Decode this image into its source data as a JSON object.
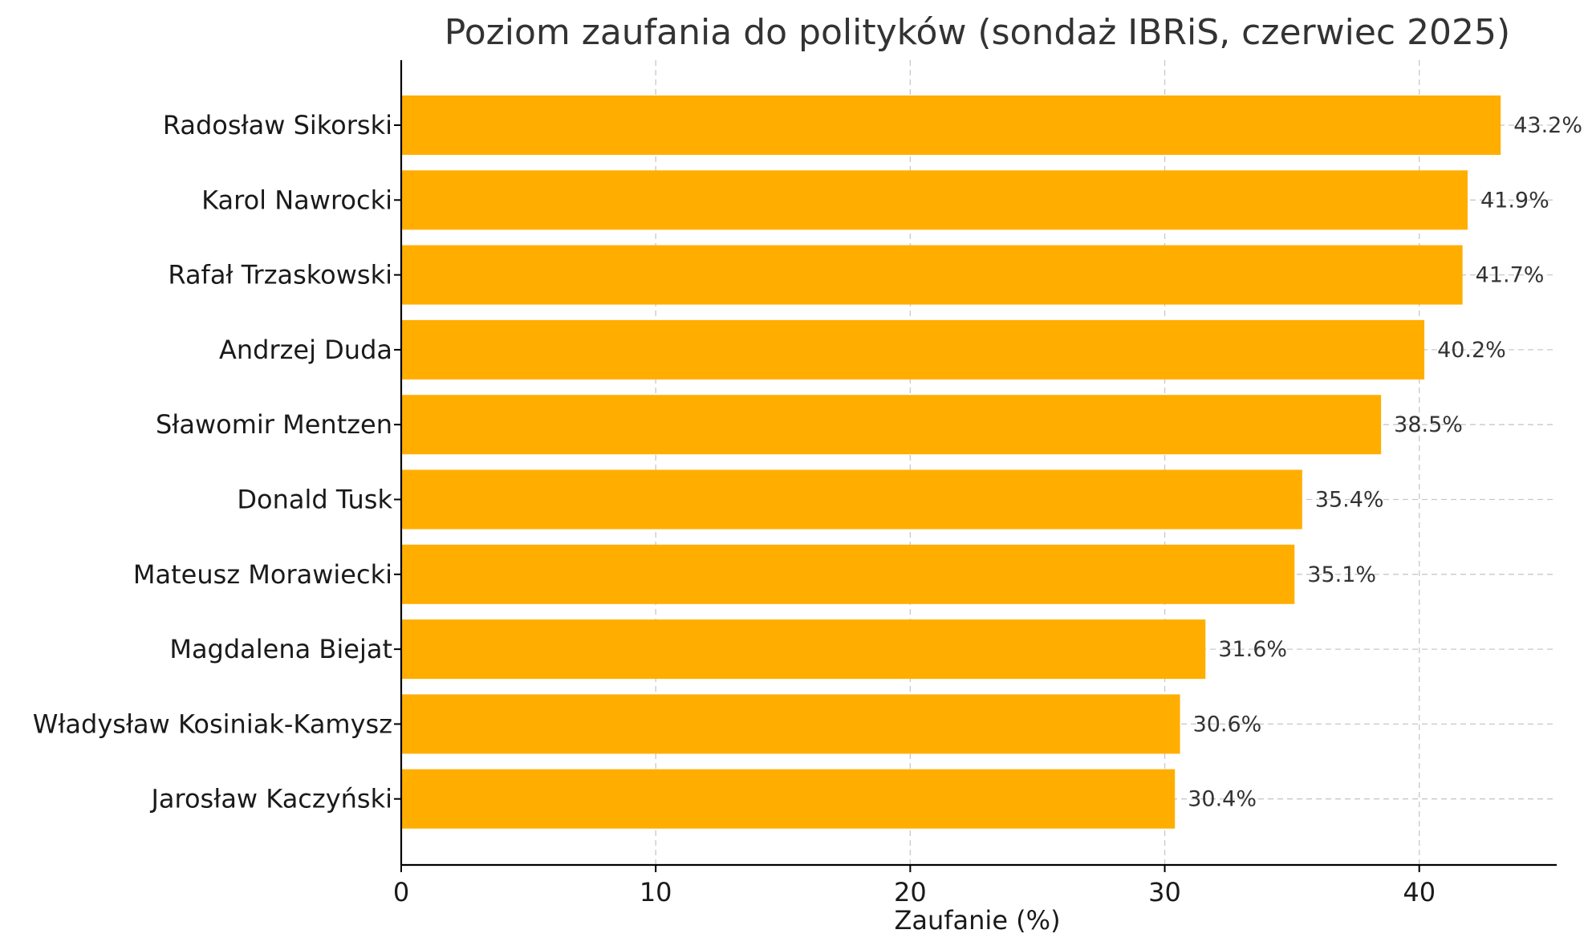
{
  "chart_data": {
    "type": "bar",
    "orientation": "horizontal",
    "title": "Poziom zaufania do polityków (sondaż IBRiS, czerwiec 2025)",
    "xlabel": "Zaufanie (%)",
    "ylabel": "",
    "xlim": [
      0,
      45.4
    ],
    "xticks": [
      "0",
      "10",
      "20",
      "30",
      "40"
    ],
    "grid": true,
    "bar_color": "#FFAE00",
    "categories": [
      "Radosław Sikorski",
      "Karol Nawrocki",
      "Rafał Trzaskowski",
      "Andrzej Duda",
      "Sławomir Mentzen",
      "Donald Tusk",
      "Mateusz Morawiecki",
      "Magdalena Biejat",
      "Władysław Kosiniak-Kamysz",
      "Jarosław Kaczyński"
    ],
    "values": [
      43.2,
      41.9,
      41.7,
      40.2,
      38.5,
      35.4,
      35.1,
      31.6,
      30.6,
      30.4
    ],
    "value_labels": [
      "43.2%",
      "41.9%",
      "41.7%",
      "40.2%",
      "38.5%",
      "35.4%",
      "35.1%",
      "31.6%",
      "30.6%",
      "30.4%"
    ]
  }
}
